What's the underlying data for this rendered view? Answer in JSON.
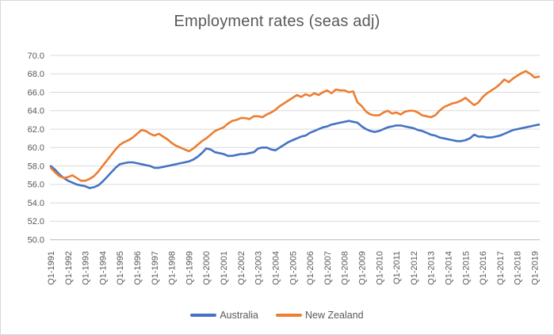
{
  "chart_data": {
    "type": "line",
    "title": "Employment rates (seas adj)",
    "xlabel": "",
    "ylabel": "",
    "ylim": [
      50.0,
      70.0
    ],
    "y_tick_step": 2.0,
    "y_ticks": [
      "70.0",
      "68.0",
      "66.0",
      "64.0",
      "62.0",
      "60.0",
      "58.0",
      "56.0",
      "54.0",
      "52.0",
      "50.0"
    ],
    "x_frequency": "quarterly",
    "x_start": "Q1-1991",
    "x_end": "Q2-2019",
    "x_tick_labels": [
      "Q1-1991",
      "Q1-1992",
      "Q1-1993",
      "Q1-1994",
      "Q1-1995",
      "Q1-1996",
      "Q1-1997",
      "Q1-1998",
      "Q1-1999",
      "Q1-2000",
      "Q1-2001",
      "Q1-2002",
      "Q1-2003",
      "Q1-2004",
      "Q1-2005",
      "Q1-2006",
      "Q1-2007",
      "Q1-2008",
      "Q1-2009",
      "Q1-2010",
      "Q1-2011",
      "Q1-2012",
      "Q1-2013",
      "Q1-2014",
      "Q1-2015",
      "Q1-2016",
      "Q1-2017",
      "Q1-2018",
      "Q1-2019"
    ],
    "x_tick_label_rotation": -90,
    "grid": true,
    "legend_position": "bottom",
    "gridline_color": "#d9d9d9",
    "axis_line_color": "#bfbfbf",
    "axis_text_color": "#595959",
    "title_color": "#595959",
    "series": [
      {
        "name": "Australia",
        "color": "#4472C4",
        "values": [
          58.0,
          57.6,
          57.1,
          56.7,
          56.4,
          56.2,
          56.0,
          55.9,
          55.8,
          55.6,
          55.7,
          55.9,
          56.3,
          56.8,
          57.3,
          57.8,
          58.2,
          58.3,
          58.4,
          58.4,
          58.3,
          58.2,
          58.1,
          58.0,
          57.8,
          57.8,
          57.9,
          58.0,
          58.1,
          58.2,
          58.3,
          58.4,
          58.5,
          58.7,
          59.0,
          59.4,
          59.9,
          59.8,
          59.5,
          59.4,
          59.3,
          59.1,
          59.1,
          59.2,
          59.3,
          59.3,
          59.4,
          59.5,
          59.9,
          60.0,
          60.0,
          59.8,
          59.7,
          60.0,
          60.3,
          60.6,
          60.8,
          61.0,
          61.2,
          61.3,
          61.6,
          61.8,
          62.0,
          62.2,
          62.3,
          62.5,
          62.6,
          62.7,
          62.8,
          62.9,
          62.8,
          62.7,
          62.3,
          62.0,
          61.8,
          61.7,
          61.8,
          62.0,
          62.2,
          62.3,
          62.4,
          62.4,
          62.3,
          62.2,
          62.1,
          61.9,
          61.8,
          61.6,
          61.4,
          61.3,
          61.1,
          61.0,
          60.9,
          60.8,
          60.7,
          60.7,
          60.8,
          61.0,
          61.4,
          61.2,
          61.2,
          61.1,
          61.1,
          61.2,
          61.3,
          61.5,
          61.7,
          61.9,
          62.0,
          62.1,
          62.2,
          62.3,
          62.4,
          62.5
        ]
      },
      {
        "name": "New Zealand",
        "color": "#ED7D31",
        "values": [
          57.8,
          57.3,
          56.9,
          56.7,
          56.8,
          57.0,
          56.7,
          56.4,
          56.4,
          56.6,
          56.9,
          57.4,
          58.0,
          58.6,
          59.2,
          59.8,
          60.3,
          60.6,
          60.8,
          61.1,
          61.5,
          61.9,
          61.8,
          61.5,
          61.3,
          61.5,
          61.2,
          60.9,
          60.5,
          60.2,
          60.0,
          59.8,
          59.6,
          59.9,
          60.3,
          60.7,
          61.0,
          61.4,
          61.8,
          62.0,
          62.2,
          62.6,
          62.9,
          63.0,
          63.2,
          63.2,
          63.1,
          63.4,
          63.4,
          63.3,
          63.6,
          63.8,
          64.1,
          64.5,
          64.8,
          65.1,
          65.4,
          65.7,
          65.5,
          65.8,
          65.6,
          65.9,
          65.7,
          66.0,
          66.2,
          65.9,
          66.3,
          66.2,
          66.2,
          66.0,
          66.1,
          64.9,
          64.5,
          63.9,
          63.6,
          63.5,
          63.5,
          63.8,
          64.0,
          63.7,
          63.8,
          63.6,
          63.9,
          64.0,
          64.0,
          63.8,
          63.5,
          63.4,
          63.3,
          63.5,
          64.0,
          64.4,
          64.6,
          64.8,
          64.9,
          65.1,
          65.4,
          65.0,
          64.6,
          64.9,
          65.5,
          65.9,
          66.2,
          66.5,
          66.9,
          67.4,
          67.1,
          67.5,
          67.8,
          68.1,
          68.3,
          68.0,
          67.6,
          67.7
        ]
      }
    ]
  },
  "legend": {
    "items": [
      {
        "label": "Australia",
        "color": "#4472C4"
      },
      {
        "label": "New Zealand",
        "color": "#ED7D31"
      }
    ]
  }
}
